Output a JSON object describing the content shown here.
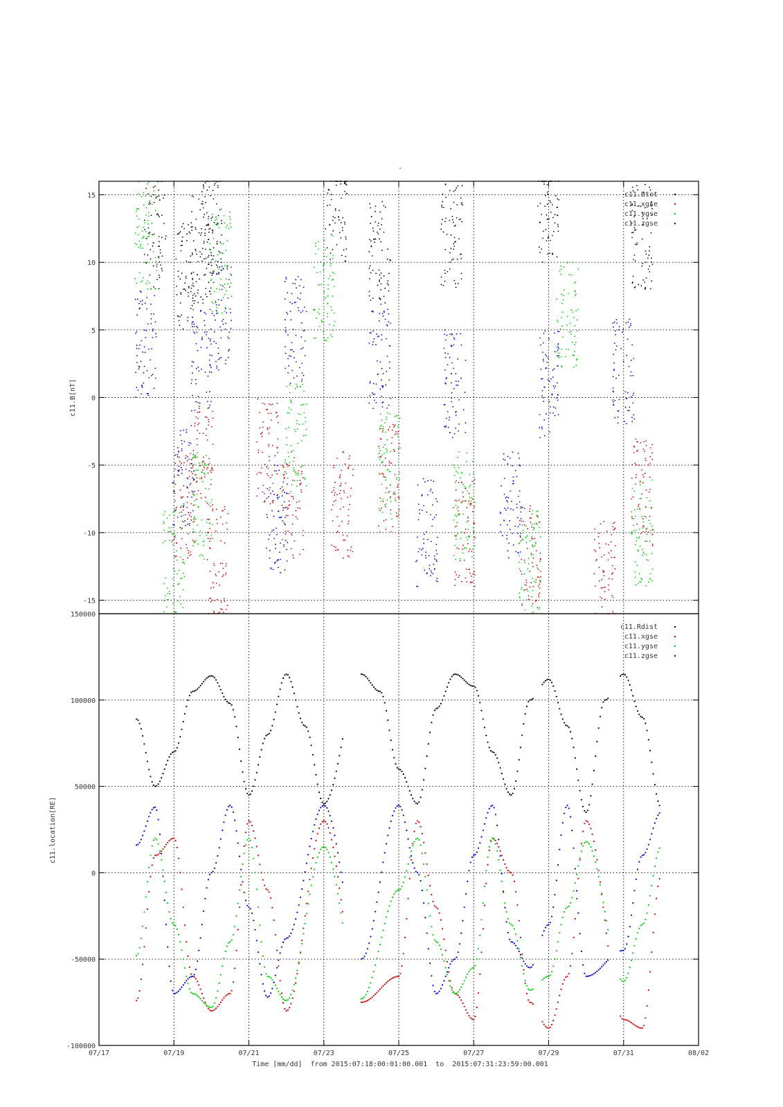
{
  "chart_data": [
    {
      "type": "scatter",
      "title": "-",
      "ylabel": "c11.B[nT]",
      "xlabel": "",
      "x_tick_labels": [],
      "xlim": [
        "2015-07-17",
        "2015-08-02"
      ],
      "ylim": [
        -16,
        16
      ],
      "y_ticks": [
        15,
        10,
        5,
        0,
        -5,
        -10,
        -15
      ],
      "y_tick_labels": [
        "15",
        "10",
        "5",
        "0",
        "-5",
        "-10",
        "-15"
      ],
      "grid": true,
      "legend_position": "top-right",
      "series": [
        {
          "name": "c11.Btot",
          "color": "#000000",
          "x": [
            "2015-07-18T12:00",
            "2015-07-19T08:00",
            "2015-07-19T18:00",
            "2015-07-20T00:00",
            "2015-07-23T08:00",
            "2015-07-24T12:00",
            "2015-07-26T10:00",
            "2015-07-29T00:00",
            "2015-07-31T12:00"
          ],
          "y": [
            12,
            9,
            11,
            13,
            14,
            11,
            12,
            14,
            12
          ]
        },
        {
          "name": "c11.xgse",
          "color": "#cc0000",
          "x": [
            "2015-07-19T06:00",
            "2015-07-19T18:00",
            "2015-07-20T04:00",
            "2015-07-21T12:00",
            "2015-07-22T04:00",
            "2015-07-23T12:00",
            "2015-07-24T18:00",
            "2015-07-26T18:00",
            "2015-07-28T12:00",
            "2015-07-30T12:00",
            "2015-07-31T12:00"
          ],
          "y": [
            -8,
            -4,
            -12,
            -4,
            -8,
            -8,
            -6,
            -10,
            -12,
            -13,
            -7
          ]
        },
        {
          "name": "c11.ygse",
          "color": "#00cc00",
          "x": [
            "2015-07-18T06:00",
            "2015-07-19T00:00",
            "2015-07-19T18:00",
            "2015-07-20T06:00",
            "2015-07-22T06:00",
            "2015-07-23T00:00",
            "2015-07-24T18:00",
            "2015-07-26T18:00",
            "2015-07-28T12:00",
            "2015-07-29T12:00",
            "2015-07-31T12:00"
          ],
          "y": [
            12,
            -12,
            -8,
            10,
            -3,
            8,
            -5,
            -8,
            -12,
            6,
            -10
          ]
        },
        {
          "name": "c11.zgse",
          "color": "#0000cc",
          "x": [
            "2015-07-18T06:00",
            "2015-07-19T06:00",
            "2015-07-19T18:00",
            "2015-07-20T06:00",
            "2015-07-21T18:00",
            "2015-07-22T06:00",
            "2015-07-24T12:00",
            "2015-07-25T18:00",
            "2015-07-26T12:00",
            "2015-07-28T00:00",
            "2015-07-29T00:00",
            "2015-07-31T00:00"
          ],
          "y": [
            4,
            -6,
            3,
            6,
            -9,
            5,
            3,
            -10,
            1,
            -8,
            1,
            2
          ]
        }
      ]
    },
    {
      "type": "scatter",
      "title": "",
      "ylabel": "c11.location[RE]",
      "xlabel": "Time [mm/dd]  from 2015:07:18:00:01:00.001  to  2015:07:31:23:59:00.001",
      "xlim": [
        "2015-07-17",
        "2015-08-02"
      ],
      "ylim": [
        -100000,
        150000
      ],
      "x_tick_labels": [
        "07/17",
        "07/19",
        "07/21",
        "07/23",
        "07/25",
        "07/27",
        "07/29",
        "07/31",
        "08/02"
      ],
      "y_ticks": [
        150000,
        100000,
        50000,
        0,
        -50000,
        -100000
      ],
      "y_tick_labels": [
        "150000",
        "100000",
        "50000",
        "0",
        "-50000",
        "-100000"
      ],
      "grid": true,
      "legend_position": "top-right",
      "segments": [
        [
          "2015-07-18T00:00",
          "2015-07-21T22:00"
        ],
        [
          "2015-07-21T22:00",
          "2015-07-23T12:00"
        ],
        [
          "2015-07-24T00:00",
          "2015-07-28T14:00"
        ],
        [
          "2015-07-28T20:00",
          "2015-07-30T14:00"
        ],
        [
          "2015-07-30T22:00",
          "2015-07-31T23:59"
        ]
      ],
      "series": [
        {
          "name": "c11.Rdist",
          "color": "#000000",
          "x": [
            "2015-07-18T00:00",
            "2015-07-18T12:00",
            "2015-07-19T00:00",
            "2015-07-19T12:00",
            "2015-07-20T00:00",
            "2015-07-20T12:00",
            "2015-07-21T00:00",
            "2015-07-21T12:00",
            "2015-07-22T00:00",
            "2015-07-22T12:00",
            "2015-07-23T00:00",
            "2015-07-24T00:00",
            "2015-07-24T12:00",
            "2015-07-25T00:00",
            "2015-07-25T12:00",
            "2015-07-26T00:00",
            "2015-07-26T12:00",
            "2015-07-27T00:00",
            "2015-07-27T12:00",
            "2015-07-28T00:00",
            "2015-07-28T12:00",
            "2015-07-29T00:00",
            "2015-07-29T12:00",
            "2015-07-30T00:00",
            "2015-07-30T12:00",
            "2015-07-31T00:00",
            "2015-07-31T12:00",
            "2015-08-01T00:00"
          ],
          "y": [
            89000,
            50000,
            70000,
            105000,
            114000,
            98000,
            45000,
            80000,
            115000,
            85000,
            40000,
            115000,
            105000,
            60000,
            40000,
            95000,
            115000,
            108000,
            70000,
            45000,
            100000,
            112000,
            85000,
            35000,
            100000,
            115000,
            90000,
            38000
          ]
        },
        {
          "name": "c11.xgse",
          "color": "#cc0000",
          "x": [
            "2015-07-18T00:00",
            "2015-07-18T12:00",
            "2015-07-19T00:00",
            "2015-07-19T12:00",
            "2015-07-20T00:00",
            "2015-07-20T12:00",
            "2015-07-21T00:00",
            "2015-07-21T12:00",
            "2015-07-22T00:00",
            "2015-07-23T00:00",
            "2015-07-24T00:00",
            "2015-07-25T00:00",
            "2015-07-25T12:00",
            "2015-07-26T00:00",
            "2015-07-26T12:00",
            "2015-07-27T00:00",
            "2015-07-27T12:00",
            "2015-07-28T00:00",
            "2015-07-28T12:00",
            "2015-07-29T00:00",
            "2015-07-29T12:00",
            "2015-07-30T00:00",
            "2015-07-31T00:00",
            "2015-07-31T12:00",
            "2015-08-01T00:00"
          ],
          "y": [
            -74000,
            10000,
            20000,
            -60000,
            -80000,
            -70000,
            30000,
            -10000,
            -80000,
            30000,
            -75000,
            -60000,
            30000,
            -20000,
            -70000,
            -85000,
            20000,
            0,
            -75000,
            -90000,
            -60000,
            30000,
            -85000,
            -90000,
            -2000
          ]
        },
        {
          "name": "c11.ygse",
          "color": "#00cc00",
          "x": [
            "2015-07-18T00:00",
            "2015-07-18T12:00",
            "2015-07-19T00:00",
            "2015-07-19T12:00",
            "2015-07-20T00:00",
            "2015-07-20T12:00",
            "2015-07-21T00:00",
            "2015-07-21T12:00",
            "2015-07-22T00:00",
            "2015-07-23T00:00",
            "2015-07-24T00:00",
            "2015-07-25T00:00",
            "2015-07-25T12:00",
            "2015-07-26T00:00",
            "2015-07-26T12:00",
            "2015-07-27T00:00",
            "2015-07-27T12:00",
            "2015-07-28T00:00",
            "2015-07-28T12:00",
            "2015-07-29T00:00",
            "2015-07-29T12:00",
            "2015-07-30T00:00",
            "2015-07-31T00:00",
            "2015-07-31T12:00",
            "2015-08-01T00:00"
          ],
          "y": [
            -48000,
            20000,
            -30000,
            -70000,
            -78000,
            -40000,
            20000,
            -60000,
            -74000,
            15000,
            -73000,
            -10000,
            20000,
            -40000,
            -70000,
            -55000,
            20000,
            -30000,
            -68000,
            -60000,
            -20000,
            18000,
            -63000,
            -30000,
            15000
          ]
        },
        {
          "name": "c11.zgse",
          "color": "#0000cc",
          "x": [
            "2015-07-18T00:00",
            "2015-07-18T12:00",
            "2015-07-19T00:00",
            "2015-07-19T12:00",
            "2015-07-20T00:00",
            "2015-07-20T12:00",
            "2015-07-21T00:00",
            "2015-07-21T12:00",
            "2015-07-22T00:00",
            "2015-07-23T00:00",
            "2015-07-24T00:00",
            "2015-07-25T00:00",
            "2015-07-25T12:00",
            "2015-07-26T00:00",
            "2015-07-26T12:00",
            "2015-07-27T00:00",
            "2015-07-27T12:00",
            "2015-07-28T00:00",
            "2015-07-28T12:00",
            "2015-07-29T00:00",
            "2015-07-29T12:00",
            "2015-07-30T00:00",
            "2015-07-31T00:00",
            "2015-07-31T12:00",
            "2015-08-01T00:00"
          ],
          "y": [
            16000,
            38000,
            -70000,
            -60000,
            0,
            39000,
            -20000,
            -72000,
            -38000,
            39000,
            -50000,
            39000,
            0,
            -70000,
            -50000,
            10000,
            39000,
            -40000,
            -55000,
            -30000,
            39000,
            -60000,
            -45000,
            10000,
            35000
          ]
        }
      ]
    }
  ]
}
